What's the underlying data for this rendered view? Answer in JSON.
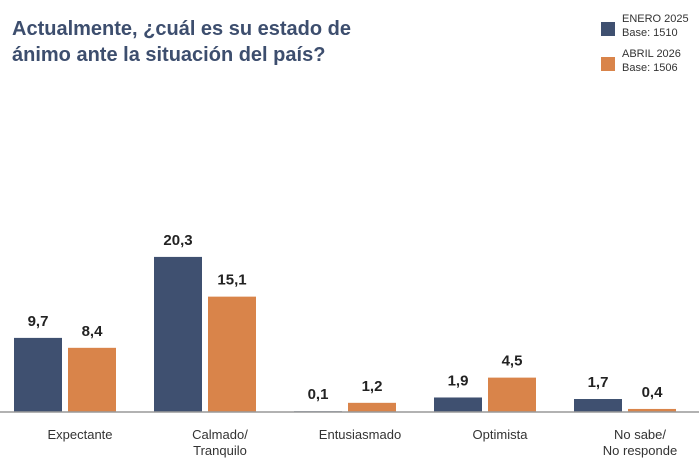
{
  "chart_data": {
    "type": "bar",
    "title": "Actualmente, ¿cuál es su estado de\nánimo ante la situación del país?",
    "categories": [
      "Expectante",
      "Calmado/\nTranquilo",
      "Entusiasmado",
      "Optimista",
      "No sabe/\nNo responde"
    ],
    "series": [
      {
        "name": "ENERO 2025",
        "base": "Base: 1510",
        "color": "#3f5070",
        "values": [
          9.7,
          20.3,
          0.1,
          1.9,
          1.7
        ],
        "value_labels": [
          "9,7",
          "20,3",
          "0,1",
          "1,9",
          "1,7"
        ]
      },
      {
        "name": "ABRIL 2026",
        "base": "Base: 1506",
        "color": "#d9844a",
        "values": [
          8.4,
          15.1,
          1.2,
          4.5,
          0.4
        ],
        "value_labels": [
          "8,4",
          "15,1",
          "1,2",
          "4,5",
          "0,4"
        ]
      }
    ],
    "ylim": [
      0,
      25
    ],
    "grid": false,
    "legend": "top-right"
  }
}
